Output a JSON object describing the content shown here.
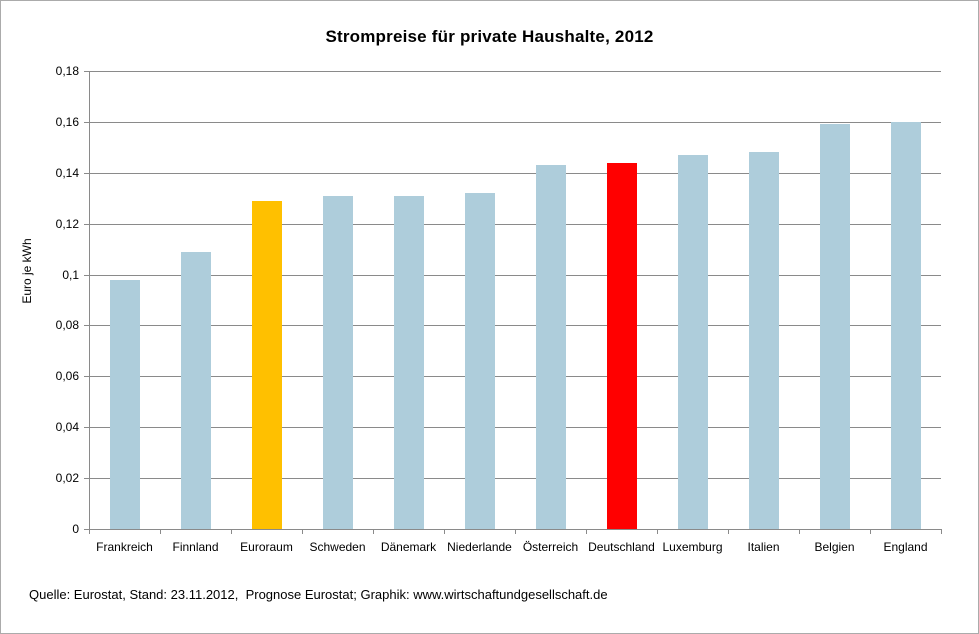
{
  "page": {
    "footer": "Quelle: Eurostat, Stand: 23.11.2012,  Prognose Eurostat; Graphik: www.wirtschaftundgesellschaft.de"
  },
  "chart_data": {
    "type": "bar",
    "title": "Strompreise für private Haushalte, 2012",
    "xlabel": "",
    "ylabel": "Euro je kWh",
    "categories": [
      "Frankreich",
      "Finnland",
      "Euroraum",
      "Schweden",
      "Dänemark",
      "Niederlande",
      "Österreich",
      "Deutschland",
      "Luxemburg",
      "Italien",
      "Belgien",
      "England"
    ],
    "values": [
      0.098,
      0.109,
      0.129,
      0.131,
      0.131,
      0.132,
      0.143,
      0.144,
      0.147,
      0.148,
      0.159,
      0.16
    ],
    "bar_colors": [
      "#AECDDB",
      "#AECDDB",
      "#FFC000",
      "#AECDDB",
      "#AECDDB",
      "#AECDDB",
      "#AECDDB",
      "#FF0000",
      "#AECDDB",
      "#AECDDB",
      "#AECDDB",
      "#AECDDB"
    ],
    "ylim": [
      0,
      0.18
    ],
    "yticks": [
      {
        "value": 0,
        "label": "0"
      },
      {
        "value": 0.02,
        "label": "0,02"
      },
      {
        "value": 0.04,
        "label": "0,04"
      },
      {
        "value": 0.06,
        "label": "0,06"
      },
      {
        "value": 0.08,
        "label": "0,08"
      },
      {
        "value": 0.1,
        "label": "0,1"
      },
      {
        "value": 0.12,
        "label": "0,12"
      },
      {
        "value": 0.14,
        "label": "0,14"
      },
      {
        "value": 0.16,
        "label": "0,16"
      },
      {
        "value": 0.18,
        "label": "0,18"
      }
    ],
    "grid": true,
    "legend": "none",
    "colors": {
      "default_bar": "#AECDDB",
      "euroraum_bar": "#FFC000",
      "deutschland_bar": "#FF0000",
      "gridline": "#8a8a8a",
      "axis": "#8a8a8a",
      "text": "#000000",
      "background": "#ffffff"
    }
  }
}
